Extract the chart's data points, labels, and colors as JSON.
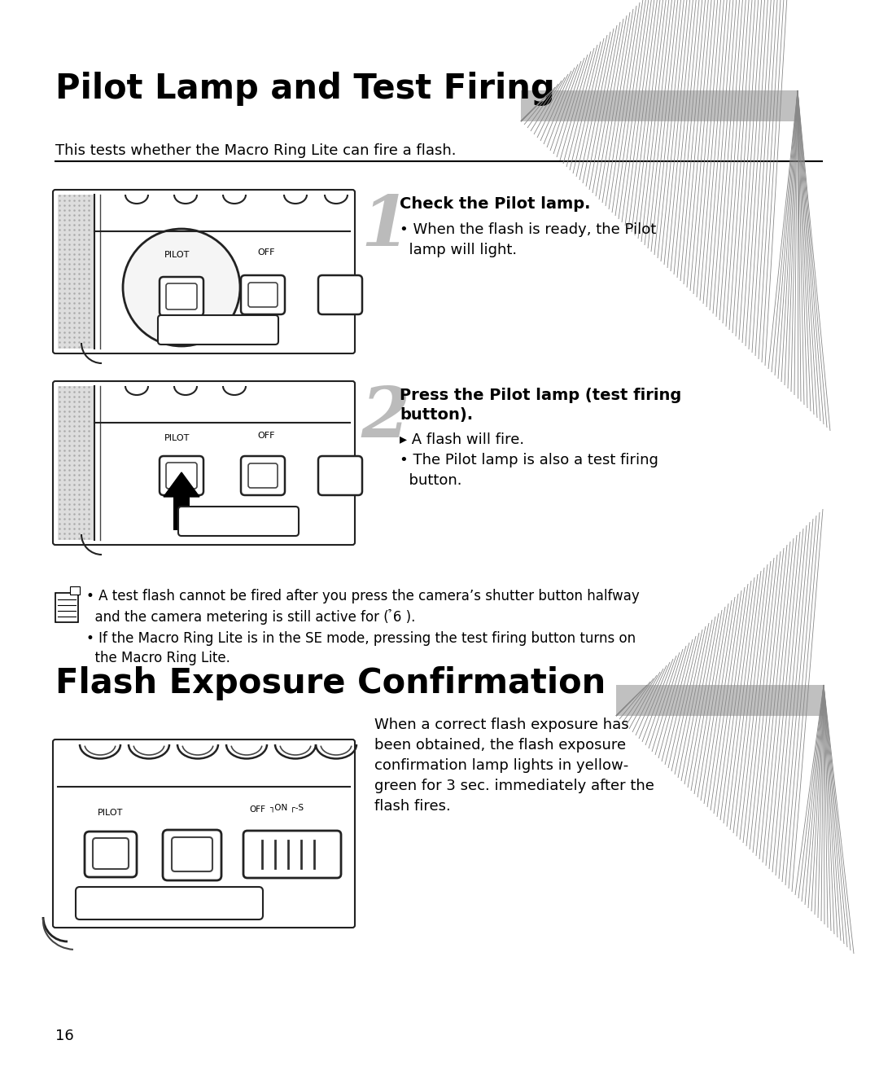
{
  "title1": "Pilot Lamp and Test Firing",
  "title2": "Flash Exposure Confirmation",
  "subtitle": "This tests whether the Macro Ring Lite can fire a flash.",
  "step1_title": "Check the Pilot lamp.",
  "step1_bullet": "• When the flash is ready, the Pilot\n  lamp will light.",
  "step2_title": "Press the Pilot lamp (test firing\nbutton).",
  "step2_bullet1": "▸ A flash will fire.",
  "step2_bullet2": "• The Pilot lamp is also a test firing\n  button.",
  "note1": "• A test flash cannot be fired after you press the camera’s shutter button halfway\n  and the camera metering is still active for ( ̉6 ).",
  "note2": "• If the Macro Ring Lite is in the SE mode, pressing the test firing button turns on\n  the Macro Ring Lite.",
  "flash_text": "When a correct flash exposure has\nbeen obtained, the flash exposure\nconfirmation lamp lights in yellow-\ngreen for 3 sec. immediately after the\nflash fires.",
  "page_num": "16",
  "bg_color": "#ffffff",
  "text_color": "#000000"
}
